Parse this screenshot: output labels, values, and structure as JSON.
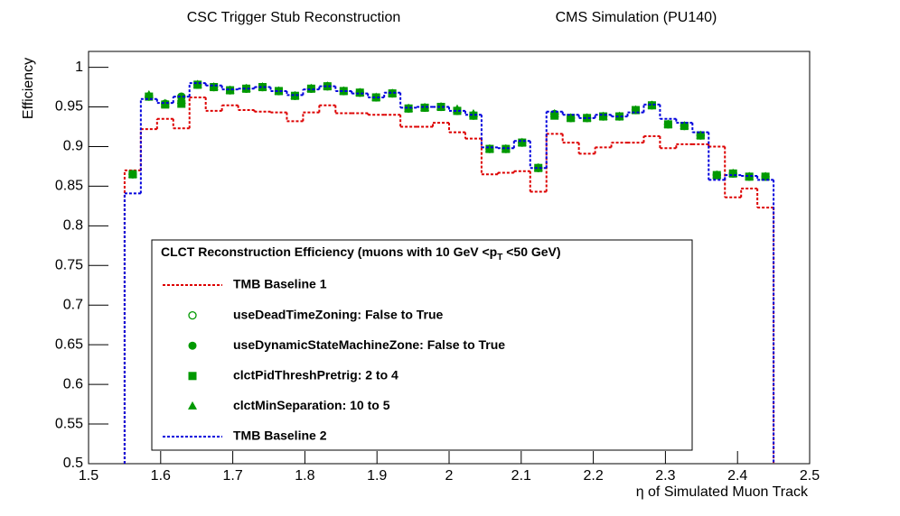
{
  "chart_data": {
    "type": "step-histogram",
    "title": "CSC Trigger Stub Reconstruction",
    "subtitle": "CMS Simulation (PU140)",
    "x_label": "η of Simulated Muon Track",
    "y_label": "Efficiency",
    "legend_title": [
      "CLCT Reconstruction Efficiency  (muons with 10 GeV <p",
      "T",
      " <50 GeV)"
    ],
    "xlim": [
      1.5,
      2.5
    ],
    "ylim": [
      0.5,
      1.02
    ],
    "xticks": [
      1.5,
      1.6,
      1.7,
      1.8,
      1.9,
      2,
      2.1,
      2.2,
      2.3,
      2.4,
      2.5
    ],
    "yticks": [
      0.5,
      0.55,
      0.6,
      0.65,
      0.7,
      0.75,
      0.8,
      0.85,
      0.9,
      0.95,
      1
    ],
    "bins": [
      1.55,
      1.5725,
      1.595,
      1.6175,
      1.64,
      1.6625,
      1.685,
      1.7075,
      1.73,
      1.7525,
      1.775,
      1.7975,
      1.82,
      1.8425,
      1.865,
      1.8875,
      1.91,
      1.9325,
      1.955,
      1.9775,
      2.0,
      2.0225,
      2.045,
      2.0675,
      2.09,
      2.1125,
      2.135,
      2.1575,
      2.18,
      2.2025,
      2.225,
      2.2475,
      2.27,
      2.2925,
      2.315,
      2.3375,
      2.36,
      2.3825,
      2.405,
      2.4275,
      2.45
    ],
    "series": [
      {
        "name": "TMB Baseline 1",
        "style": "step",
        "color": "#dd0000",
        "values": [
          0.87,
          0.922,
          0.935,
          0.923,
          0.962,
          0.945,
          0.952,
          0.946,
          0.944,
          0.943,
          0.932,
          0.943,
          0.952,
          0.942,
          0.942,
          0.94,
          0.94,
          0.925,
          0.925,
          0.93,
          0.918,
          0.91,
          0.865,
          0.867,
          0.869,
          0.843,
          0.916,
          0.905,
          0.891,
          0.899,
          0.905,
          0.905,
          0.913,
          0.898,
          0.903,
          0.903,
          0.9,
          0.836,
          0.847,
          0.823
        ]
      },
      {
        "name": "useDeadTimeZoning: False to True",
        "style": "open-circle",
        "color": "#009900",
        "values": [
          0.865,
          0.963,
          0.954,
          0.963,
          0.978,
          0.975,
          0.971,
          0.973,
          0.975,
          0.97,
          0.964,
          0.973,
          0.976,
          0.97,
          0.968,
          0.962,
          0.967,
          0.948,
          0.949,
          0.95,
          0.945,
          0.939,
          0.897,
          0.897,
          0.905,
          0.873,
          0.941,
          0.936,
          0.936,
          0.938,
          0.938,
          0.946,
          0.952,
          0.928,
          0.926,
          0.914,
          0.864,
          0.866,
          0.862,
          0.862
        ]
      },
      {
        "name": "useDynamicStateMachineZone: False to True",
        "style": "circle",
        "color": "#009900",
        "values": [
          0.865,
          0.963,
          0.954,
          0.962,
          0.978,
          0.975,
          0.971,
          0.973,
          0.975,
          0.97,
          0.964,
          0.973,
          0.976,
          0.97,
          0.968,
          0.962,
          0.967,
          0.948,
          0.949,
          0.95,
          0.945,
          0.939,
          0.897,
          0.897,
          0.905,
          0.873,
          0.941,
          0.936,
          0.936,
          0.938,
          0.938,
          0.946,
          0.952,
          0.928,
          0.926,
          0.914,
          0.864,
          0.866,
          0.862,
          0.862
        ]
      },
      {
        "name": "clctPidThreshPretrig: 2 to 4",
        "style": "square",
        "color": "#009900",
        "values": [
          0.865,
          0.963,
          0.953,
          0.954,
          0.978,
          0.975,
          0.971,
          0.973,
          0.975,
          0.97,
          0.964,
          0.973,
          0.976,
          0.97,
          0.968,
          0.962,
          0.967,
          0.948,
          0.949,
          0.95,
          0.945,
          0.939,
          0.897,
          0.897,
          0.905,
          0.873,
          0.939,
          0.936,
          0.936,
          0.938,
          0.938,
          0.946,
          0.952,
          0.928,
          0.926,
          0.914,
          0.864,
          0.866,
          0.862,
          0.862
        ]
      },
      {
        "name": "clctMinSeparation: 10 to 5",
        "style": "triangle",
        "color": "#009900",
        "values": [
          0.865,
          0.965,
          0.954,
          0.958,
          0.978,
          0.975,
          0.971,
          0.973,
          0.975,
          0.97,
          0.964,
          0.973,
          0.976,
          0.97,
          0.968,
          0.962,
          0.967,
          0.948,
          0.949,
          0.95,
          0.947,
          0.941,
          0.897,
          0.897,
          0.905,
          0.873,
          0.941,
          0.936,
          0.936,
          0.938,
          0.938,
          0.946,
          0.952,
          0.928,
          0.926,
          0.914,
          0.864,
          0.866,
          0.862,
          0.862
        ]
      },
      {
        "name": "TMB Baseline 2",
        "style": "step",
        "color": "#0000dd",
        "values": [
          0.841,
          0.96,
          0.955,
          0.963,
          0.98,
          0.977,
          0.972,
          0.973,
          0.975,
          0.97,
          0.965,
          0.972,
          0.976,
          0.97,
          0.967,
          0.962,
          0.968,
          0.949,
          0.95,
          0.95,
          0.945,
          0.94,
          0.899,
          0.898,
          0.907,
          0.873,
          0.944,
          0.94,
          0.936,
          0.94,
          0.938,
          0.943,
          0.953,
          0.935,
          0.93,
          0.918,
          0.858,
          0.864,
          0.863,
          0.858
        ]
      }
    ]
  }
}
